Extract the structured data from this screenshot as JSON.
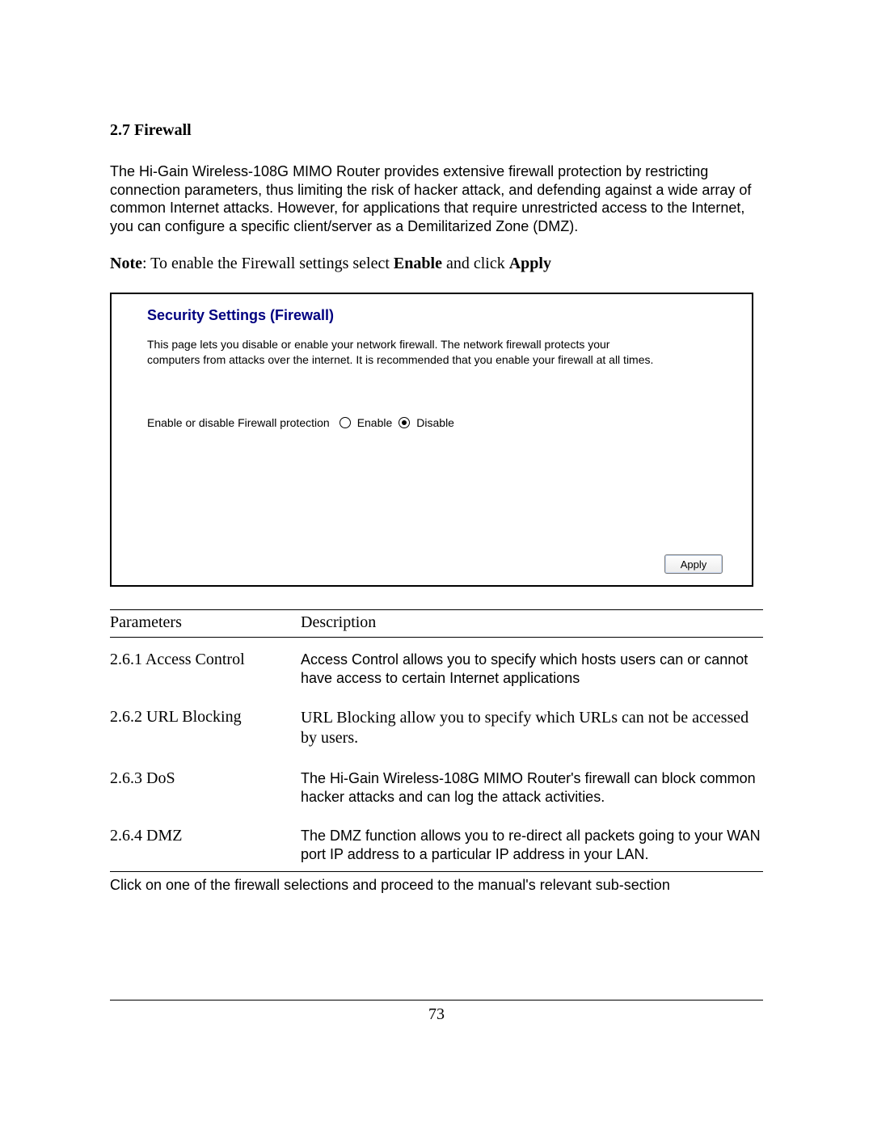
{
  "section": {
    "heading": "2.7 Firewall",
    "intro": "The Hi-Gain Wireless-108G MIMO Router provides extensive firewall protection by restricting connection parameters, thus limiting the risk of hacker attack, and defending against a wide array of common Internet attacks. However, for applications that require unrestricted access to the Internet, you can configure a specific client/server as a Demilitarized Zone (DMZ).",
    "note_prefix": "Note",
    "note_mid": ": To enable the Firewall settings select ",
    "note_enable": "Enable",
    "note_and": " and click ",
    "note_apply": "Apply"
  },
  "panel": {
    "title": "Security Settings (Firewall)",
    "description": "This page lets you disable or enable your network firewall. The network firewall protects your computers from attacks over the internet. It is recommended that you enable your firewall at all times.",
    "radio_label": "Enable or disable Firewall protection",
    "option_enable": "Enable",
    "option_disable": "Disable",
    "selected": "disable",
    "apply_label": "Apply",
    "title_color": "#000080",
    "border_color": "#000000"
  },
  "table": {
    "header_param": "Parameters",
    "header_desc": "Description",
    "rows": [
      {
        "param": "2.6.1 Access Control",
        "desc": "Access Control allows you to specify which hosts users can or cannot have access to certain Internet applications",
        "desc_font": "sans"
      },
      {
        "param": "2.6.2 URL Blocking",
        "desc": "URL Blocking allow you to specify which URLs can not be accessed by users.",
        "desc_font": "serif"
      },
      {
        "param": "2.6.3 DoS",
        "desc": "The Hi-Gain Wireless-108G MIMO Router's firewall can block common hacker attacks and can log the attack activities.",
        "desc_font": "sans"
      },
      {
        "param": "2.6.4 DMZ",
        "desc": "The DMZ function allows you to re-direct all packets going to your WAN port IP address to a particular IP address in your LAN.",
        "desc_font": "sans"
      }
    ],
    "after": "Click on one of the firewall selections and proceed to the manual's relevant sub-section"
  },
  "page_number": "73"
}
